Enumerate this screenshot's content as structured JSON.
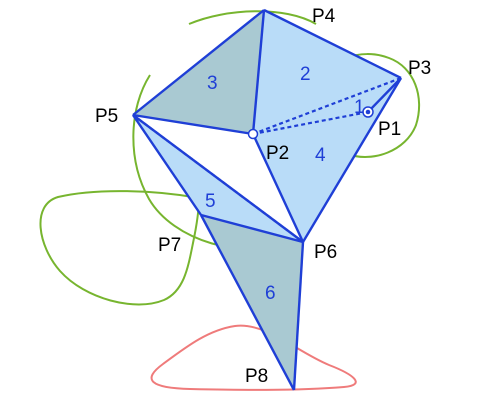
{
  "diagram": {
    "points": {
      "p1": "P1",
      "p2": "P2",
      "p3": "P3",
      "p4": "P4",
      "p5": "P5",
      "p6": "P6",
      "p7": "P7",
      "p8": "P8"
    },
    "regions": {
      "r1": "1",
      "r2": "2",
      "r3": "3",
      "r4": "4",
      "r5": "5",
      "r6": "6"
    },
    "colors": {
      "triangle_fill_light": "#b9dcf8",
      "triangle_fill_dark": "#a9c9d2",
      "edge": "#1f3fd6",
      "green_curve": "#77b52f",
      "red_curve": "#ef7b7b",
      "label_text": "#000000",
      "region_text": "#1f3fd6"
    }
  }
}
